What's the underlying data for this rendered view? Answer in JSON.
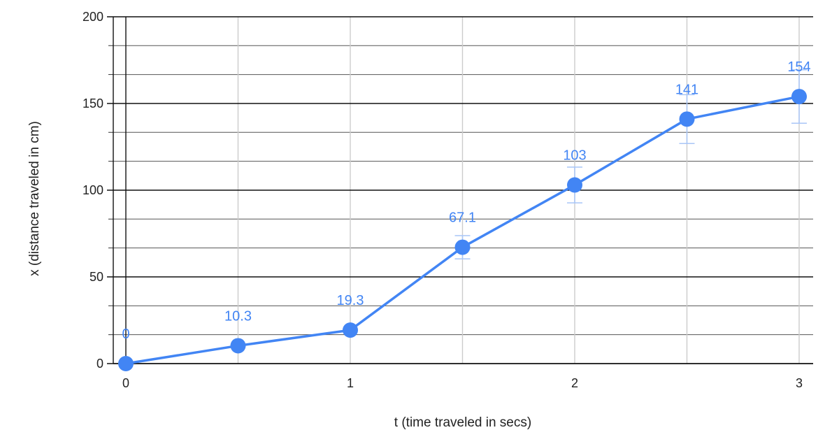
{
  "chart_data": {
    "type": "line",
    "title": "",
    "xlabel": "t (time traveled in secs)",
    "ylabel": "x (distance traveled in cm)",
    "xlim": [
      0,
      3
    ],
    "ylim": [
      0,
      200
    ],
    "x_ticks": [
      0,
      1,
      2,
      3
    ],
    "y_ticks": [
      0,
      50,
      100,
      150,
      200
    ],
    "x_minor_step": 0.5,
    "y_minor_step": 16.67,
    "grid": true,
    "legend": "none",
    "series": [
      {
        "x": [
          0,
          0.5,
          1,
          1.5,
          2,
          2.5,
          3
        ],
        "y": [
          0,
          10.3,
          19.3,
          67.1,
          103,
          141,
          154
        ],
        "labels": [
          "0",
          "10.3",
          "19.3",
          "67.1",
          "103",
          "141",
          "154"
        ],
        "error_low": [
          0,
          0,
          0,
          60.4,
          92.7,
          126.9,
          138.6
        ],
        "error_high": [
          0,
          0,
          0,
          73.8,
          113.3,
          155.1,
          169.4
        ],
        "color": "#4285f4",
        "error_color": "#a9c6f7"
      }
    ]
  }
}
